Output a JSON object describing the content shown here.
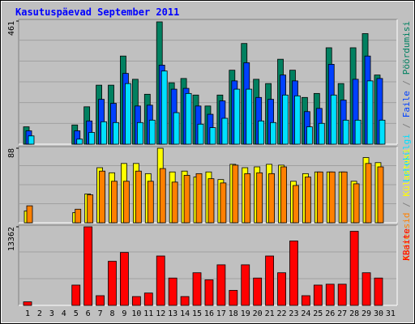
{
  "title": "Kasutuspäevad September 2011",
  "categories": [
    "1",
    "2",
    "3",
    "4",
    "5",
    "6",
    "7",
    "8",
    "9",
    "10",
    "11",
    "12",
    "13",
    "14",
    "15",
    "16",
    "17",
    "18",
    "19",
    "20",
    "21",
    "22",
    "23",
    "24",
    "25",
    "26",
    "27",
    "28",
    "29",
    "30",
    "31"
  ],
  "category_colors": [
    "#000080",
    "#000080",
    "#008040",
    "#008040",
    "#000080",
    "#000080",
    "#000080",
    "#000080",
    "#000080",
    "#008040",
    "#008040",
    "#000080",
    "#000080",
    "#000080",
    "#000080",
    "#000080",
    "#008040",
    "#008040",
    "#000080",
    "#000080",
    "#000080",
    "#000080",
    "#000080",
    "#008040",
    "#008040",
    "#000080",
    "#000080",
    "#000080",
    "#000080",
    "#000080",
    "#008040"
  ],
  "legend_separator": " / ",
  "separator_color": "#808080",
  "chart_data": [
    {
      "type": "bar",
      "ylim": [
        0,
        461
      ],
      "yticks": [
        461
      ],
      "series": [
        {
          "name": "Pöördumisi",
          "color": "#008060",
          "values": [
            65,
            null,
            null,
            null,
            72,
            140,
            221,
            221,
            330,
            243,
            187,
            458,
            230,
            246,
            184,
            143,
            184,
            277,
            377,
            243,
            227,
            318,
            277,
            175,
            190,
            361,
            227,
            361,
            414,
            259,
            null
          ]
        },
        {
          "name": "Faile",
          "color": "#0040ff",
          "values": [
            50,
            null,
            null,
            null,
            50,
            87,
            168,
            153,
            265,
            143,
            146,
            296,
            206,
            209,
            143,
            112,
            162,
            237,
            305,
            175,
            168,
            259,
            237,
            122,
            134,
            299,
            165,
            243,
            330,
            246,
            null
          ]
        },
        {
          "name": "Lehekülgi",
          "color": "#00e0ff",
          "values": [
            31,
            null,
            null,
            null,
            19,
            44,
            84,
            81,
            227,
            81,
            90,
            274,
            118,
            190,
            75,
            62,
            97,
            206,
            206,
            87,
            81,
            184,
            181,
            65,
            78,
            184,
            90,
            90,
            237,
            90,
            null
          ]
        }
      ]
    },
    {
      "type": "bar",
      "ylim": [
        0,
        88
      ],
      "yticks": [
        88
      ],
      "series": [
        {
          "name": "Külastusi",
          "color": "#ffff00",
          "values": [
            14,
            null,
            null,
            null,
            12,
            34,
            65,
            59,
            70,
            70,
            58,
            88,
            60,
            61,
            54,
            60,
            51,
            69,
            65,
            66,
            69,
            68,
            49,
            58,
            60,
            60,
            60,
            49,
            77,
            71,
            null
          ]
        },
        {
          "name": "Aadressid",
          "color": "#ff8000",
          "values": [
            20,
            null,
            null,
            null,
            16,
            33,
            61,
            49,
            49,
            61,
            49,
            64,
            48,
            56,
            58,
            52,
            47,
            68,
            58,
            59,
            58,
            66,
            44,
            54,
            60,
            60,
            60,
            46,
            70,
            66,
            null
          ]
        }
      ]
    },
    {
      "type": "bar",
      "ylim": [
        0,
        13362
      ],
      "yticks": [
        13362
      ],
      "series": [
        {
          "name": "KBaite",
          "color": "#ff0000",
          "values": [
            600,
            null,
            null,
            null,
            3450,
            13362,
            1650,
            7500,
            9000,
            1500,
            2100,
            8400,
            4650,
            1500,
            5550,
            4350,
            6900,
            2550,
            6900,
            4650,
            8400,
            5550,
            10950,
            1650,
            3450,
            3600,
            3600,
            12600,
            5550,
            4650,
            null
          ]
        }
      ]
    }
  ]
}
